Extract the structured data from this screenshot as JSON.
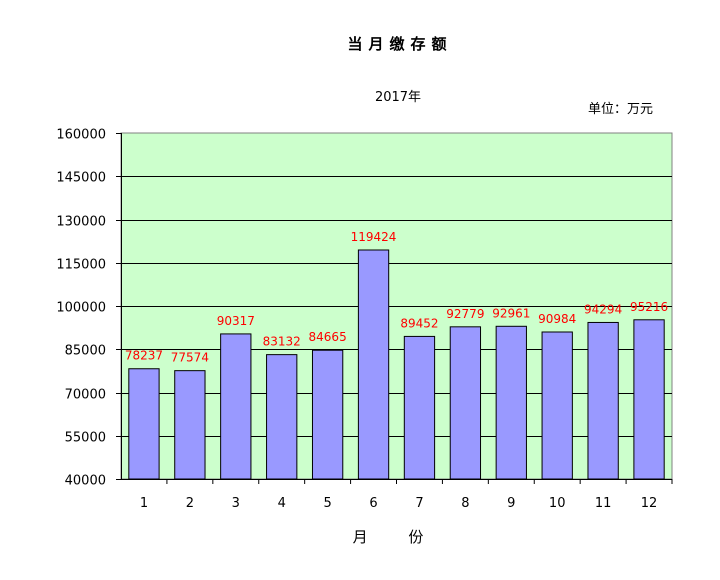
{
  "chart_data": {
    "type": "bar",
    "title": "当月缴存额",
    "subtitle": "2017年",
    "unit_label": "单位：万元",
    "xlabel": "月 份",
    "ylabel": "",
    "categories": [
      "1",
      "2",
      "3",
      "4",
      "5",
      "6",
      "7",
      "8",
      "9",
      "10",
      "11",
      "12"
    ],
    "values": [
      78237,
      77574,
      90317,
      83132,
      84665,
      119424,
      89452,
      92779,
      92961,
      90984,
      94294,
      95216
    ],
    "data_labels": [
      "78237",
      "77574",
      "90317",
      "83132",
      "84665",
      "119424",
      "89452",
      "92779",
      "92961",
      "90984",
      "94294",
      "95216"
    ],
    "ylim": [
      40000,
      160000
    ],
    "yticks": [
      "40000",
      "55000",
      "70000",
      "85000",
      "100000",
      "115000",
      "130000",
      "145000",
      "160000"
    ],
    "grid": true,
    "legend": "none",
    "colors": {
      "plot_background": "#ccffcc",
      "bar_fill": "#9999ff",
      "bar_stroke": "#000000",
      "data_label": "#ff0000",
      "gridline": "#000000"
    }
  }
}
